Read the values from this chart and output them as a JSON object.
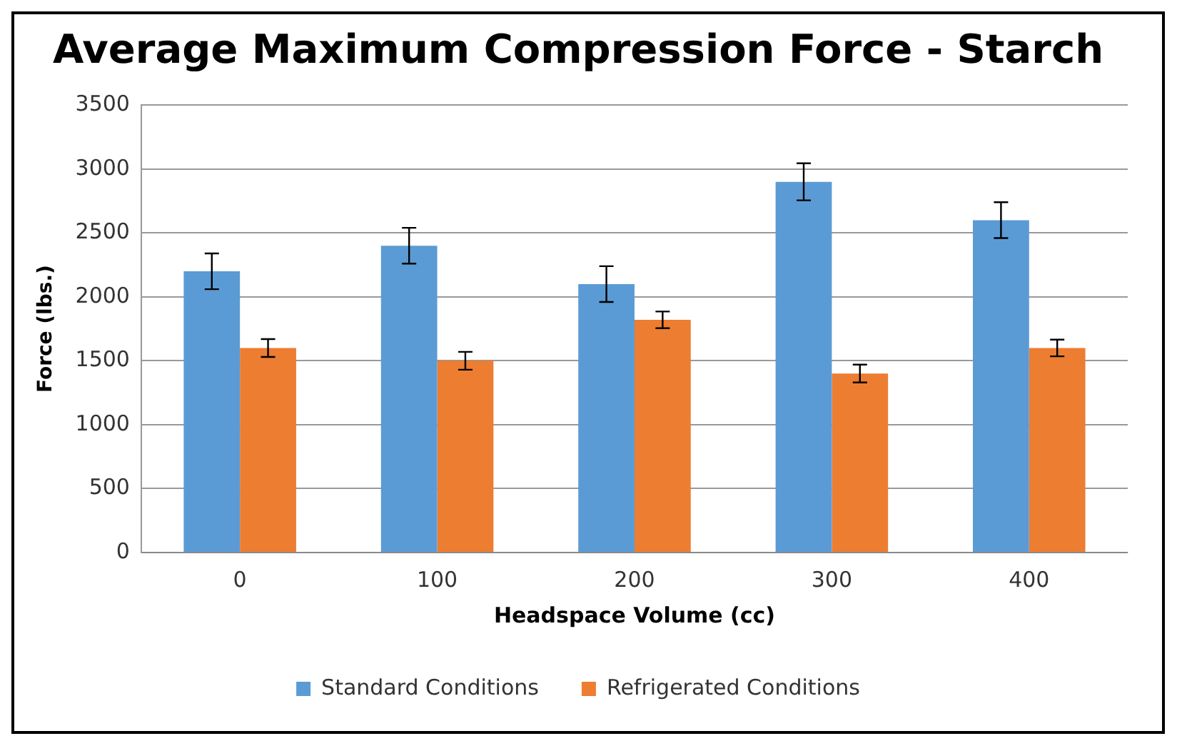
{
  "chart_data": {
    "type": "bar",
    "title": "Average Maximum Compression Force - Starch",
    "xlabel": "Headspace Volume (cc)",
    "ylabel": "Force (lbs.)",
    "categories": [
      "0",
      "100",
      "200",
      "300",
      "400"
    ],
    "series": [
      {
        "name": "Standard Conditions",
        "color": "#5b9bd5",
        "values": [
          2200,
          2400,
          2100,
          2900,
          2600
        ],
        "errors": [
          140,
          140,
          140,
          145,
          140
        ]
      },
      {
        "name": "Refrigerated Conditions",
        "color": "#ed7d31",
        "values": [
          1600,
          1500,
          1820,
          1400,
          1600
        ],
        "errors": [
          70,
          70,
          65,
          70,
          65
        ]
      }
    ],
    "ylim": [
      0,
      3500
    ],
    "yticks": [
      0,
      500,
      1000,
      1500,
      2000,
      2500,
      3000,
      3500
    ],
    "grid": "y",
    "legend": "bottom"
  }
}
